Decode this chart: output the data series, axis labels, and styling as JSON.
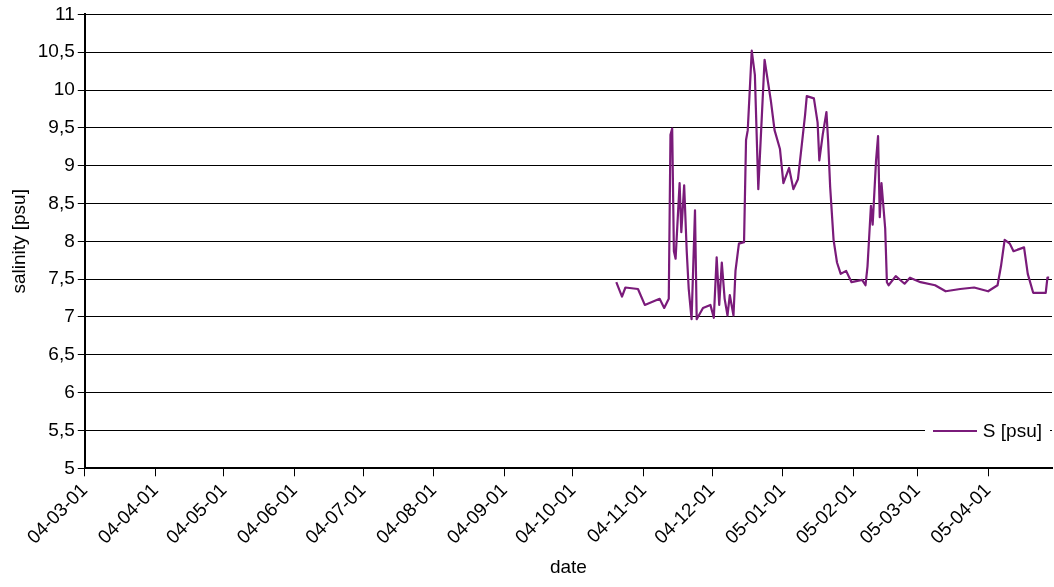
{
  "chart_data": {
    "type": "line",
    "xlabel": "date",
    "ylabel": "salinity [psu]",
    "xlim": [
      "2004-03-01",
      "2005-04-29"
    ],
    "xticks": [
      {
        "value": "2004-03-01",
        "label": "04-03-01"
      },
      {
        "value": "2004-04-01",
        "label": "04-04-01"
      },
      {
        "value": "2004-05-01",
        "label": "04-05-01"
      },
      {
        "value": "2004-06-01",
        "label": "04-06-01"
      },
      {
        "value": "2004-07-01",
        "label": "04-07-01"
      },
      {
        "value": "2004-08-01",
        "label": "04-08-01"
      },
      {
        "value": "2004-09-01",
        "label": "04-09-01"
      },
      {
        "value": "2004-10-01",
        "label": "04-10-01"
      },
      {
        "value": "2004-11-01",
        "label": "04-11-01"
      },
      {
        "value": "2004-12-01",
        "label": "04-12-01"
      },
      {
        "value": "2005-01-01",
        "label": "05-01-01"
      },
      {
        "value": "2005-02-01",
        "label": "05-02-01"
      },
      {
        "value": "2005-03-01",
        "label": "05-03-01"
      },
      {
        "value": "2005-04-01",
        "label": "05-04-01"
      }
    ],
    "ylim": [
      5,
      11
    ],
    "yticks": [
      5,
      {
        "value": 5.5,
        "label": "5,5"
      },
      6,
      {
        "value": 6.5,
        "label": "6,5"
      },
      7,
      {
        "value": 7.5,
        "label": "7,5"
      },
      8,
      {
        "value": 8.5,
        "label": "8,5"
      },
      9,
      {
        "value": 9.5,
        "label": "9,5"
      },
      10,
      {
        "value": 10.5,
        "label": "10,5"
      },
      11
    ],
    "grid": "y",
    "legend": "bottom right",
    "marker": "none",
    "line_style": "solid",
    "series": [
      {
        "name": "S [psu]",
        "color": "#7a1b7a",
        "x": [
          "2004-10-20",
          "2004-10-22T12:00",
          "2004-10-24",
          "2004-10-29T12:00",
          "2004-11-01T12:00",
          "2004-11-08",
          "2004-11-10",
          "2004-11-12",
          "2004-11-12T18:00",
          "2004-11-13T12:00",
          "2004-11-14T06:00",
          "2004-11-15",
          "2004-11-16T18:00",
          "2004-11-17T12:00",
          "2004-11-18T18:00",
          "2004-11-19T21:00",
          "2004-11-20T18:00",
          "2004-11-22",
          "2004-11-23T12:00",
          "2004-11-24T06:00",
          "2004-11-27",
          "2004-11-30T06:00",
          "2004-12-01T18:00",
          "2004-12-03",
          "2004-12-04T03:00",
          "2004-12-05T06:00",
          "2004-12-06T12:00",
          "2004-12-07T18:00",
          "2004-12-08T18:00",
          "2004-12-10T09:00",
          "2004-12-11T06:00",
          "2004-12-12T18:00",
          "2004-12-15",
          "2004-12-15T21:00",
          "2004-12-16T15:00",
          "2004-12-18T09:00",
          "2004-12-19T18:00",
          "2004-12-21T06:00",
          "2004-12-24",
          "2004-12-26T18:00",
          "2004-12-28T09:00",
          "2004-12-30T18:00",
          "2005-01-01T06:00",
          "2005-01-03T18:00",
          "2005-01-05T15:00",
          "2005-01-07T15:00",
          "2005-01-09T06:00",
          "2005-01-10T18:00",
          "2005-01-11T12:00",
          "2005-01-14T15:00",
          "2005-01-16T06:00",
          "2005-01-17",
          "2005-01-18T12:00",
          "2005-01-20T03:00",
          "2005-01-20T21:00",
          "2005-01-21T18:00",
          "2005-01-23T06:00",
          "2005-01-24T18:00",
          "2005-01-26T09:00",
          "2005-01-28T18:00",
          "2005-01-31T03:00",
          "2005-02-04T18:00",
          "2005-02-06T06:00",
          "2005-02-07T03:00",
          "2005-02-08T15:00",
          "2005-02-09T09:00",
          "2005-02-10T21:00",
          "2005-02-11T18:00",
          "2005-02-12T12:00",
          "2005-02-13T06:00",
          "2005-02-14T21:00",
          "2005-02-15T15:00",
          "2005-02-16T09:00",
          "2005-02-19T12:00",
          "2005-02-23T09:00",
          "2005-02-25T18:00",
          "2005-03-02T09:00",
          "2005-03-08T18:00",
          "2005-03-13T09:00",
          "2005-03-19T18:00",
          "2005-03-25T21:00",
          "2005-04-01",
          "2005-04-05T03:00",
          "2005-04-06T15:00",
          "2005-04-08T06:00",
          "2005-04-10T12:00",
          "2005-04-12T03:00",
          "2005-04-16T18:00",
          "2005-04-18T09:00",
          "2005-04-20T18:00",
          "2005-04-26T06:00",
          "2005-04-27",
          "2005-04-27T18:00"
        ],
        "values": [
          7.46,
          7.27,
          7.39,
          7.37,
          7.16,
          7.24,
          7.12,
          7.24,
          9.41,
          9.49,
          7.87,
          7.77,
          8.77,
          8.12,
          8.74,
          7.87,
          7.37,
          6.97,
          8.41,
          6.97,
          7.12,
          7.16,
          6.99,
          7.79,
          7.16,
          7.72,
          7.24,
          7.02,
          7.29,
          7.02,
          7.61,
          7.97,
          7.99,
          9.34,
          9.47,
          10.52,
          10.2,
          8.69,
          10.4,
          9.86,
          9.47,
          9.22,
          8.77,
          8.97,
          8.69,
          8.82,
          9.26,
          9.67,
          9.92,
          9.89,
          9.57,
          9.07,
          9.41,
          9.71,
          9.32,
          8.72,
          8.02,
          7.72,
          7.57,
          7.61,
          7.46,
          7.49,
          7.42,
          7.67,
          8.47,
          8.22,
          9.07,
          9.39,
          8.32,
          8.77,
          8.17,
          7.46,
          7.42,
          7.54,
          7.44,
          7.52,
          7.46,
          7.42,
          7.34,
          7.37,
          7.39,
          7.34,
          7.42,
          7.67,
          8.02,
          7.97,
          7.87,
          7.92,
          7.57,
          7.32,
          7.32,
          7.52,
          7.52
        ]
      }
    ]
  }
}
